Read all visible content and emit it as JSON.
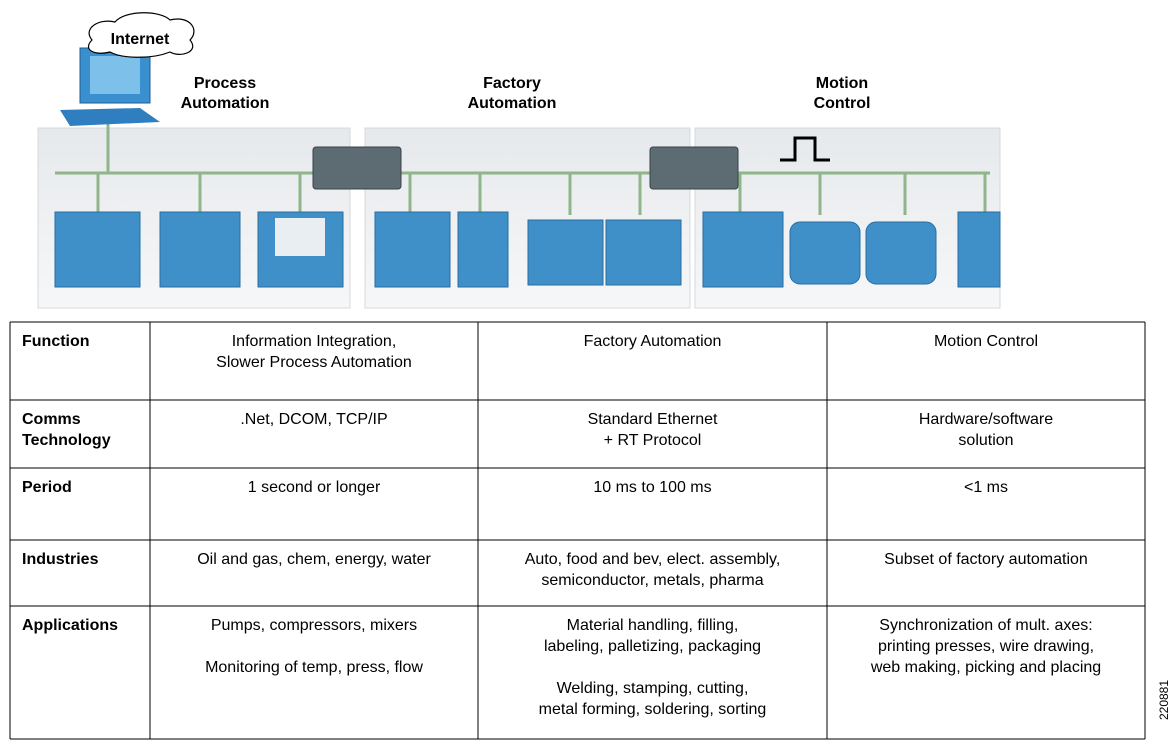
{
  "diagram": {
    "internet": "Internet",
    "segments": [
      [
        "Process",
        "Automation"
      ],
      [
        "Factory",
        "Automation"
      ],
      [
        "Motion",
        "Control"
      ]
    ]
  },
  "table": {
    "rows": [
      {
        "header": [
          "Function"
        ],
        "cells": [
          [
            [
              "Information Integration,",
              "Slower Process Automation"
            ]
          ],
          [
            [
              "Factory Automation"
            ]
          ],
          [
            [
              "Motion Control"
            ]
          ]
        ]
      },
      {
        "header": [
          "Comms",
          "Technology"
        ],
        "cells": [
          [
            [
              ".Net, DCOM, TCP/IP"
            ]
          ],
          [
            [
              "Standard Ethernet",
              "+ RT Protocol"
            ]
          ],
          [
            [
              "Hardware/software",
              "solution"
            ]
          ]
        ]
      },
      {
        "header": [
          "Period"
        ],
        "cells": [
          [
            [
              "1 second or longer"
            ]
          ],
          [
            [
              "10 ms to 100 ms"
            ]
          ],
          [
            [
              "<1 ms"
            ]
          ]
        ]
      },
      {
        "header": [
          "Industries"
        ],
        "cells": [
          [
            [
              "Oil and gas, chem, energy, water"
            ]
          ],
          [
            [
              "Auto, food and bev, elect. assembly,",
              "semiconductor, metals, pharma"
            ]
          ],
          [
            [
              "Subset of factory automation"
            ]
          ]
        ]
      },
      {
        "header": [
          "Applications"
        ],
        "cells": [
          [
            [
              "Pumps, compressors, mixers"
            ],
            [
              "Monitoring of temp, press, flow"
            ]
          ],
          [
            [
              "Material handling, filling,",
              "labeling, palletizing, packaging"
            ],
            [
              "Welding, stamping, cutting,",
              "metal forming, soldering, sorting"
            ]
          ],
          [
            [
              "Synchronization of mult. axes:",
              "printing presses, wire drawing,",
              "web making, picking and placing"
            ]
          ]
        ]
      }
    ]
  },
  "figure_id": "220881"
}
